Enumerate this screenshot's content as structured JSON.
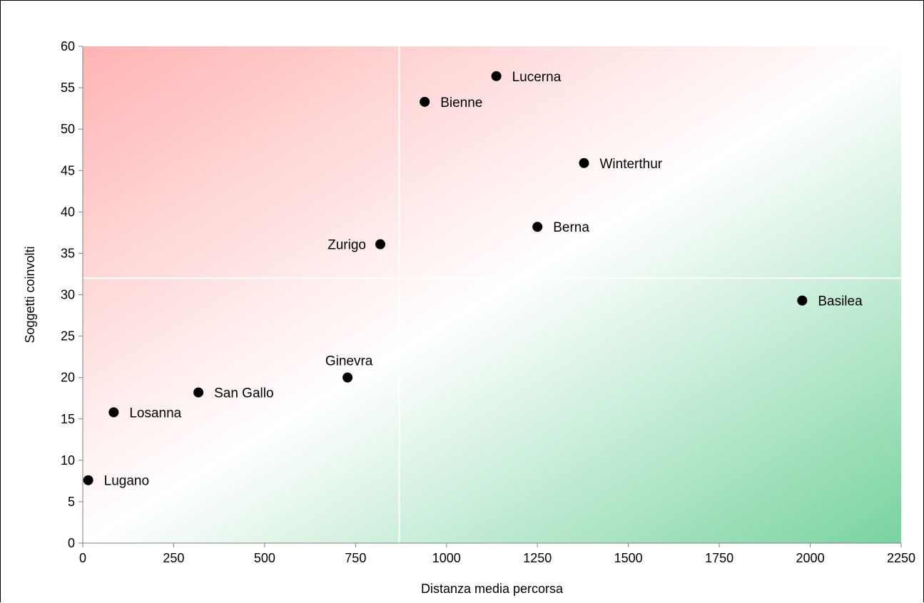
{
  "chart_data": {
    "type": "scatter",
    "title": "",
    "xlabel": "Distanza media percorsa",
    "ylabel": "Soggetti coinvolti",
    "xlim": [
      0,
      2250
    ],
    "ylim": [
      0,
      60
    ],
    "xticks": [
      "0",
      "250",
      "500",
      "750",
      "1000",
      "1250",
      "1500",
      "1750",
      "2000",
      "2250"
    ],
    "yticks": [
      "0",
      "5",
      "10",
      "15",
      "20",
      "25",
      "30",
      "35",
      "40",
      "45",
      "50",
      "55",
      "60"
    ],
    "grid": false,
    "quadrant_divider": {
      "x": 870,
      "y": 32
    },
    "background_gradient": {
      "top_left_color": "#ffb3b3",
      "middle_color": "#ffffff",
      "bottom_right_color": "#79d3a0"
    },
    "marker_color": "#000000",
    "points": [
      {
        "label": "Lugano",
        "x": 15,
        "y": 7.6,
        "label_position": "right"
      },
      {
        "label": "Losanna",
        "x": 85,
        "y": 15.8,
        "label_position": "right"
      },
      {
        "label": "San Gallo",
        "x": 318,
        "y": 18.2,
        "label_position": "right"
      },
      {
        "label": "Ginevra",
        "x": 728,
        "y": 20,
        "label_position": "above"
      },
      {
        "label": "Zurigo",
        "x": 818,
        "y": 36.1,
        "label_position": "left"
      },
      {
        "label": "Bienne",
        "x": 940,
        "y": 53.3,
        "label_position": "right"
      },
      {
        "label": "Lucerna",
        "x": 1137,
        "y": 56.4,
        "label_position": "right"
      },
      {
        "label": "Berna",
        "x": 1250,
        "y": 38.2,
        "label_position": "right"
      },
      {
        "label": "Winterthur",
        "x": 1378,
        "y": 45.9,
        "label_position": "right"
      },
      {
        "label": "Basilea",
        "x": 1978,
        "y": 29.3,
        "label_position": "right"
      }
    ]
  }
}
